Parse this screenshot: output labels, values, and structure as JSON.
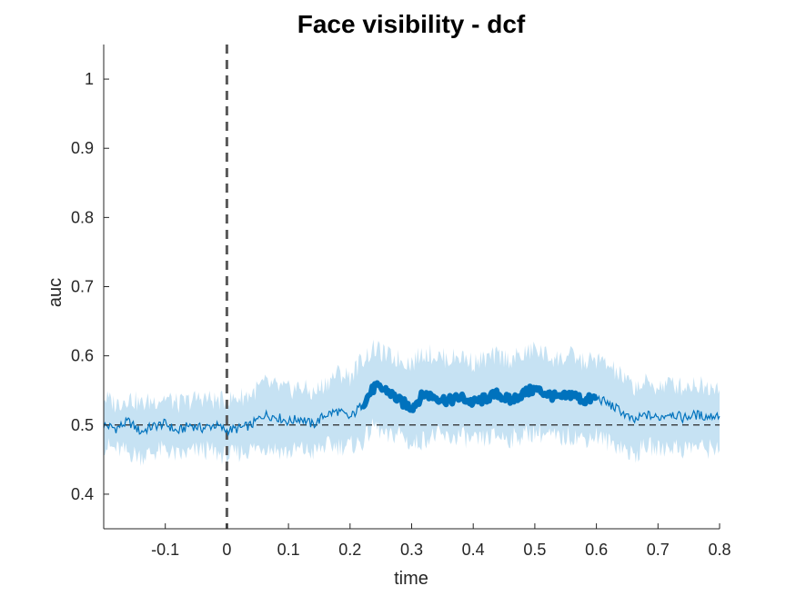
{
  "chart_data": {
    "type": "line",
    "title": "Face visibility - dcf",
    "xlabel": "time",
    "ylabel": "auc",
    "xlim": [
      -0.2,
      0.8
    ],
    "ylim": [
      0.35,
      1.05
    ],
    "x_ticks": [
      -0.1,
      0,
      0.1,
      0.2,
      0.3,
      0.4,
      0.5,
      0.6,
      0.7,
      0.8
    ],
    "x_tick_labels": [
      "-0.1",
      "0",
      "0.1",
      "0.2",
      "0.3",
      "0.4",
      "0.5",
      "0.6",
      "0.7",
      "0.8"
    ],
    "y_ticks": [
      0.4,
      0.5,
      0.6,
      0.7,
      0.8,
      0.9,
      1.0
    ],
    "y_tick_labels": [
      "0.4",
      "0.5",
      "0.6",
      "0.7",
      "0.8",
      "0.9",
      "1"
    ],
    "chance_level": 0.5,
    "stimulus_onset": 0,
    "grid": false,
    "colors": {
      "line": "#0072bd",
      "band": "#c6e2f3",
      "chance": "#262626",
      "onset": "#595959",
      "axis": "#262626"
    },
    "significant_window": [
      0.22,
      0.6
    ],
    "series": [
      {
        "x": [
          -0.2,
          -0.18,
          -0.16,
          -0.14,
          -0.12,
          -0.1,
          -0.08,
          -0.06,
          -0.04,
          -0.02,
          0.0,
          0.02,
          0.04,
          0.06,
          0.08,
          0.1,
          0.12,
          0.14,
          0.16,
          0.18,
          0.2,
          0.22,
          0.24,
          0.26,
          0.28,
          0.3,
          0.32,
          0.34,
          0.36,
          0.38,
          0.4,
          0.42,
          0.44,
          0.46,
          0.48,
          0.5,
          0.52,
          0.54,
          0.56,
          0.58,
          0.6,
          0.62,
          0.64,
          0.66,
          0.68,
          0.7,
          0.72,
          0.74,
          0.76,
          0.78,
          0.8
        ],
        "y": [
          0.5,
          0.495,
          0.505,
          0.49,
          0.498,
          0.502,
          0.49,
          0.5,
          0.495,
          0.5,
          0.492,
          0.495,
          0.5,
          0.515,
          0.512,
          0.505,
          0.51,
          0.5,
          0.515,
          0.52,
          0.51,
          0.53,
          0.555,
          0.55,
          0.535,
          0.525,
          0.545,
          0.54,
          0.535,
          0.54,
          0.532,
          0.538,
          0.545,
          0.535,
          0.545,
          0.552,
          0.545,
          0.538,
          0.545,
          0.535,
          0.54,
          0.53,
          0.52,
          0.505,
          0.515,
          0.51,
          0.518,
          0.51,
          0.515,
          0.512,
          0.515
        ],
        "lower": [
          0.47,
          0.465,
          0.46,
          0.455,
          0.46,
          0.465,
          0.455,
          0.46,
          0.465,
          0.46,
          0.455,
          0.46,
          0.465,
          0.47,
          0.465,
          0.46,
          0.465,
          0.46,
          0.47,
          0.47,
          0.47,
          0.475,
          0.5,
          0.48,
          0.49,
          0.47,
          0.48,
          0.485,
          0.48,
          0.485,
          0.475,
          0.48,
          0.485,
          0.48,
          0.485,
          0.49,
          0.485,
          0.48,
          0.485,
          0.48,
          0.485,
          0.475,
          0.47,
          0.455,
          0.47,
          0.465,
          0.47,
          0.465,
          0.47,
          0.465,
          0.47
        ],
        "upper": [
          0.54,
          0.53,
          0.54,
          0.53,
          0.535,
          0.54,
          0.53,
          0.535,
          0.54,
          0.535,
          0.535,
          0.54,
          0.545,
          0.56,
          0.555,
          0.55,
          0.555,
          0.545,
          0.56,
          0.575,
          0.57,
          0.595,
          0.61,
          0.6,
          0.595,
          0.59,
          0.605,
          0.6,
          0.595,
          0.6,
          0.59,
          0.595,
          0.6,
          0.595,
          0.6,
          0.61,
          0.6,
          0.595,
          0.6,
          0.59,
          0.595,
          0.585,
          0.57,
          0.555,
          0.56,
          0.555,
          0.56,
          0.555,
          0.56,
          0.555,
          0.56
        ]
      }
    ]
  }
}
